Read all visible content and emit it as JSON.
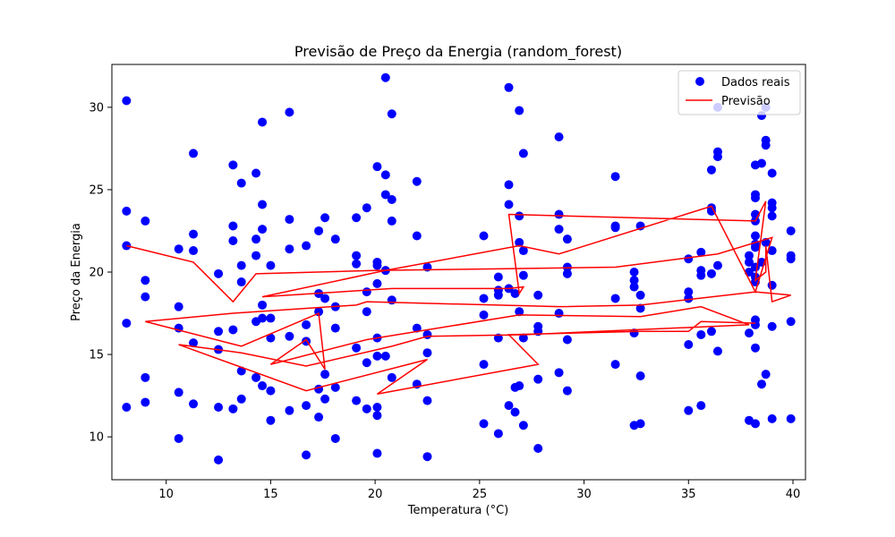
{
  "chart_data": {
    "type": "scatter",
    "title": "Previsão de Preço da Energia (random_forest)",
    "xlabel": "Temperatura (°C)",
    "ylabel": "Preço da Energia",
    "xlim": [
      7.4,
      40.6
    ],
    "ylim": [
      7.4,
      32.6
    ],
    "xticks": [
      10,
      15,
      20,
      25,
      30,
      35,
      40
    ],
    "yticks": [
      10,
      15,
      20,
      25,
      30
    ],
    "grid": false,
    "legend_position": "top-right",
    "series": [
      {
        "name": "Dados reais",
        "kind": "scatter",
        "color": "#0000ff",
        "points": [
          [
            8.1,
            30.4
          ],
          [
            8.1,
            23.7
          ],
          [
            8.1,
            21.6
          ],
          [
            8.1,
            16.9
          ],
          [
            8.1,
            11.8
          ],
          [
            9.0,
            23.1
          ],
          [
            9.0,
            19.5
          ],
          [
            9.0,
            18.5
          ],
          [
            9.0,
            13.6
          ],
          [
            9.0,
            12.1
          ],
          [
            10.6,
            21.4
          ],
          [
            10.6,
            17.9
          ],
          [
            10.6,
            16.6
          ],
          [
            10.6,
            12.7
          ],
          [
            10.6,
            9.9
          ],
          [
            11.3,
            27.2
          ],
          [
            11.3,
            22.3
          ],
          [
            11.3,
            21.3
          ],
          [
            11.3,
            15.7
          ],
          [
            11.3,
            12.0
          ],
          [
            12.5,
            19.9
          ],
          [
            12.5,
            16.4
          ],
          [
            12.5,
            15.3
          ],
          [
            12.5,
            11.8
          ],
          [
            12.5,
            8.6
          ],
          [
            13.2,
            26.5
          ],
          [
            13.2,
            22.8
          ],
          [
            13.2,
            21.9
          ],
          [
            13.2,
            16.5
          ],
          [
            13.2,
            11.7
          ],
          [
            13.6,
            25.4
          ],
          [
            13.6,
            20.4
          ],
          [
            13.6,
            19.4
          ],
          [
            13.6,
            14.0
          ],
          [
            13.6,
            12.3
          ],
          [
            14.3,
            26.0
          ],
          [
            14.3,
            22.0
          ],
          [
            14.3,
            21.0
          ],
          [
            14.3,
            17.0
          ],
          [
            14.3,
            13.6
          ],
          [
            14.6,
            29.1
          ],
          [
            14.6,
            24.1
          ],
          [
            14.6,
            22.6
          ],
          [
            14.6,
            18.0
          ],
          [
            14.6,
            17.2
          ],
          [
            14.6,
            13.1
          ],
          [
            15.0,
            20.4
          ],
          [
            15.0,
            17.2
          ],
          [
            15.0,
            16.0
          ],
          [
            15.0,
            12.8
          ],
          [
            15.0,
            11.0
          ],
          [
            15.9,
            29.7
          ],
          [
            15.9,
            23.2
          ],
          [
            15.9,
            21.4
          ],
          [
            15.9,
            16.1
          ],
          [
            15.9,
            11.6
          ],
          [
            16.7,
            21.6
          ],
          [
            16.7,
            16.8
          ],
          [
            16.7,
            15.8
          ],
          [
            16.7,
            11.9
          ],
          [
            16.7,
            8.9
          ],
          [
            17.3,
            22.5
          ],
          [
            17.3,
            18.7
          ],
          [
            17.3,
            17.6
          ],
          [
            17.3,
            12.9
          ],
          [
            17.3,
            11.2
          ],
          [
            17.6,
            23.3
          ],
          [
            17.6,
            18.4
          ],
          [
            17.6,
            13.8
          ],
          [
            17.6,
            12.3
          ],
          [
            18.1,
            22.0
          ],
          [
            18.1,
            17.9
          ],
          [
            18.1,
            16.6
          ],
          [
            18.1,
            13.0
          ],
          [
            18.1,
            9.9
          ],
          [
            19.1,
            23.3
          ],
          [
            19.1,
            21.0
          ],
          [
            19.1,
            20.5
          ],
          [
            19.1,
            15.4
          ],
          [
            19.1,
            12.2
          ],
          [
            19.6,
            23.9
          ],
          [
            19.6,
            18.8
          ],
          [
            19.6,
            17.6
          ],
          [
            19.6,
            14.5
          ],
          [
            19.6,
            11.7
          ],
          [
            20.1,
            26.4
          ],
          [
            20.1,
            20.6
          ],
          [
            20.1,
            20.4
          ],
          [
            20.1,
            19.3
          ],
          [
            20.1,
            16.0
          ],
          [
            20.1,
            14.9
          ],
          [
            20.1,
            11.8
          ],
          [
            20.1,
            11.3
          ],
          [
            20.1,
            9.0
          ],
          [
            20.5,
            31.8
          ],
          [
            20.5,
            25.9
          ],
          [
            20.5,
            24.7
          ],
          [
            20.5,
            20.1
          ],
          [
            20.5,
            14.9
          ],
          [
            20.8,
            29.6
          ],
          [
            20.8,
            24.4
          ],
          [
            20.8,
            23.1
          ],
          [
            20.8,
            18.3
          ],
          [
            20.8,
            13.6
          ],
          [
            22.0,
            25.5
          ],
          [
            22.0,
            22.2
          ],
          [
            22.0,
            16.6
          ],
          [
            22.0,
            13.2
          ],
          [
            22.5,
            20.3
          ],
          [
            22.5,
            16.2
          ],
          [
            22.5,
            15.1
          ],
          [
            22.5,
            12.2
          ],
          [
            22.5,
            8.8
          ],
          [
            25.2,
            22.2
          ],
          [
            25.2,
            18.4
          ],
          [
            25.2,
            17.4
          ],
          [
            25.2,
            14.4
          ],
          [
            25.2,
            10.8
          ],
          [
            25.9,
            19.7
          ],
          [
            25.9,
            18.9
          ],
          [
            25.9,
            18.6
          ],
          [
            25.9,
            16.0
          ],
          [
            25.9,
            10.2
          ],
          [
            26.4,
            31.2
          ],
          [
            26.4,
            25.3
          ],
          [
            26.4,
            24.1
          ],
          [
            26.4,
            19.0
          ],
          [
            26.4,
            11.9
          ],
          [
            26.7,
            18.7
          ],
          [
            26.7,
            13.0
          ],
          [
            26.7,
            11.5
          ],
          [
            26.9,
            29.8
          ],
          [
            26.9,
            23.4
          ],
          [
            26.9,
            21.8
          ],
          [
            26.9,
            17.6
          ],
          [
            26.9,
            13.1
          ],
          [
            27.1,
            27.2
          ],
          [
            27.1,
            21.3
          ],
          [
            27.1,
            19.8
          ],
          [
            27.1,
            16.0
          ],
          [
            27.1,
            10.7
          ],
          [
            27.8,
            18.6
          ],
          [
            27.8,
            16.7
          ],
          [
            27.8,
            16.4
          ],
          [
            27.8,
            13.5
          ],
          [
            27.8,
            9.3
          ],
          [
            28.8,
            28.2
          ],
          [
            28.8,
            23.5
          ],
          [
            28.8,
            22.6
          ],
          [
            28.8,
            17.5
          ],
          [
            28.8,
            13.9
          ],
          [
            29.2,
            22.0
          ],
          [
            29.2,
            20.3
          ],
          [
            29.2,
            19.9
          ],
          [
            29.2,
            15.9
          ],
          [
            29.2,
            12.8
          ],
          [
            31.5,
            25.8
          ],
          [
            31.5,
            22.8
          ],
          [
            31.5,
            22.7
          ],
          [
            31.5,
            18.4
          ],
          [
            31.5,
            14.4
          ],
          [
            32.4,
            20.0
          ],
          [
            32.4,
            19.5
          ],
          [
            32.4,
            19.1
          ],
          [
            32.4,
            16.3
          ],
          [
            32.4,
            10.7
          ],
          [
            32.7,
            22.8
          ],
          [
            32.7,
            18.6
          ],
          [
            32.7,
            17.8
          ],
          [
            32.7,
            13.7
          ],
          [
            32.7,
            10.8
          ],
          [
            35.0,
            20.8
          ],
          [
            35.0,
            18.8
          ],
          [
            35.0,
            18.4
          ],
          [
            35.0,
            15.6
          ],
          [
            35.0,
            11.6
          ],
          [
            35.6,
            21.2
          ],
          [
            35.6,
            20.1
          ],
          [
            35.6,
            19.8
          ],
          [
            35.6,
            16.2
          ],
          [
            35.6,
            11.9
          ],
          [
            36.1,
            26.2
          ],
          [
            36.1,
            23.9
          ],
          [
            36.1,
            23.7
          ],
          [
            36.1,
            19.9
          ],
          [
            36.1,
            16.4
          ],
          [
            36.4,
            30.0
          ],
          [
            36.4,
            27.3
          ],
          [
            36.4,
            27.0
          ],
          [
            36.4,
            20.4
          ],
          [
            36.4,
            15.2
          ],
          [
            37.9,
            21.0
          ],
          [
            37.9,
            20.6
          ],
          [
            37.9,
            20.0
          ],
          [
            37.9,
            16.3
          ],
          [
            37.9,
            11.0
          ],
          [
            38.2,
            26.5
          ],
          [
            38.2,
            24.7
          ],
          [
            38.2,
            24.5
          ],
          [
            38.2,
            23.5
          ],
          [
            38.2,
            23.1
          ],
          [
            38.2,
            22.2
          ],
          [
            38.2,
            21.7
          ],
          [
            38.2,
            21.5
          ],
          [
            38.2,
            20.3
          ],
          [
            38.2,
            19.7
          ],
          [
            38.2,
            19.4
          ],
          [
            38.2,
            17.1
          ],
          [
            38.2,
            16.8
          ],
          [
            38.2,
            15.4
          ],
          [
            38.2,
            10.8
          ],
          [
            38.5,
            29.5
          ],
          [
            38.5,
            26.6
          ],
          [
            38.5,
            20.6
          ],
          [
            38.5,
            13.2
          ],
          [
            38.7,
            30.0
          ],
          [
            38.7,
            28.0
          ],
          [
            38.7,
            27.7
          ],
          [
            38.7,
            21.8
          ],
          [
            38.7,
            13.8
          ],
          [
            39.0,
            26.0
          ],
          [
            39.0,
            24.2
          ],
          [
            39.0,
            23.9
          ],
          [
            39.0,
            23.4
          ],
          [
            39.0,
            21.3
          ],
          [
            39.0,
            19.2
          ],
          [
            39.0,
            16.7
          ],
          [
            39.0,
            11.1
          ],
          [
            39.9,
            22.5
          ],
          [
            39.9,
            21.0
          ],
          [
            39.9,
            20.8
          ],
          [
            39.9,
            17.0
          ],
          [
            39.9,
            11.1
          ]
        ]
      },
      {
        "name": "Previsão",
        "kind": "line",
        "color": "#ff0000",
        "points": [
          [
            8.1,
            21.6
          ],
          [
            11.3,
            20.6
          ],
          [
            13.2,
            18.2
          ],
          [
            14.3,
            19.9
          ],
          [
            20.1,
            20.1
          ],
          [
            25.9,
            20.2
          ],
          [
            31.5,
            20.3
          ],
          [
            36.4,
            21.1
          ],
          [
            39.0,
            22.1
          ],
          [
            38.2,
            18.8
          ],
          [
            36.1,
            24.0
          ],
          [
            28.8,
            21.1
          ],
          [
            26.9,
            21.6
          ],
          [
            20.5,
            20.1
          ],
          [
            14.6,
            18.5
          ],
          [
            20.8,
            19.0
          ],
          [
            25.9,
            19.0
          ],
          [
            26.4,
            19.0
          ],
          [
            27.1,
            19.1
          ],
          [
            26.9,
            18.7
          ],
          [
            26.4,
            23.5
          ],
          [
            38.2,
            23.1
          ],
          [
            38.7,
            24.3
          ],
          [
            38.2,
            19.5
          ],
          [
            38.7,
            20.0
          ],
          [
            38.7,
            21.6
          ],
          [
            39.0,
            18.2
          ],
          [
            39.9,
            18.6
          ],
          [
            38.2,
            18.8
          ],
          [
            32.7,
            18.0
          ],
          [
            28.8,
            17.9
          ],
          [
            19.6,
            18.2
          ],
          [
            19.1,
            18.0
          ],
          [
            13.2,
            17.5
          ],
          [
            9.0,
            17.0
          ],
          [
            13.6,
            15.5
          ],
          [
            17.3,
            17.5
          ],
          [
            17.6,
            14.1
          ],
          [
            16.7,
            15.9
          ],
          [
            15.0,
            14.4
          ],
          [
            19.6,
            15.9
          ],
          [
            26.9,
            17.4
          ],
          [
            32.7,
            17.3
          ],
          [
            35.6,
            17.9
          ],
          [
            37.9,
            16.8
          ],
          [
            27.1,
            16.2
          ],
          [
            22.5,
            16.1
          ],
          [
            20.8,
            15.5
          ],
          [
            16.7,
            14.3
          ],
          [
            13.6,
            15.1
          ],
          [
            10.6,
            15.6
          ],
          [
            16.7,
            12.8
          ],
          [
            22.5,
            14.7
          ],
          [
            20.1,
            12.6
          ],
          [
            27.8,
            14.4
          ],
          [
            26.4,
            16.2
          ],
          [
            32.7,
            16.4
          ],
          [
            35.0,
            16.4
          ],
          [
            35.6,
            17.0
          ],
          [
            38.2,
            16.9
          ]
        ]
      }
    ]
  }
}
